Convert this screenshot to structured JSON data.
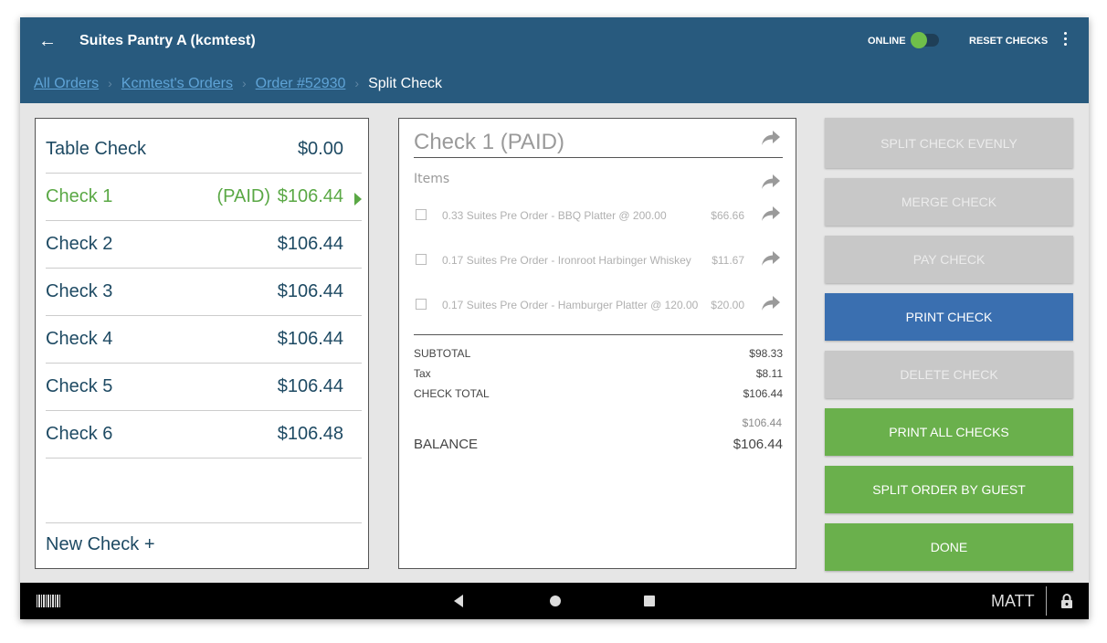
{
  "header": {
    "title": "Suites Pantry A (kcmtest)",
    "online_label": "ONLINE",
    "reset_label": "RESET CHECKS"
  },
  "breadcrumb": {
    "items": [
      "All Orders",
      "Kcmtest's Orders",
      "Order #52930"
    ],
    "current": "Split Check"
  },
  "checks": {
    "rows": [
      {
        "name": "Table Check",
        "amount": "$0.00",
        "status": ""
      },
      {
        "name": "Check 1",
        "amount": "$106.44",
        "status": "(PAID)"
      },
      {
        "name": "Check 2",
        "amount": "$106.44",
        "status": ""
      },
      {
        "name": "Check 3",
        "amount": "$106.44",
        "status": ""
      },
      {
        "name": "Check 4",
        "amount": "$106.44",
        "status": ""
      },
      {
        "name": "Check 5",
        "amount": "$106.44",
        "status": ""
      },
      {
        "name": "Check 6",
        "amount": "$106.48",
        "status": ""
      }
    ],
    "new_check": "New Check +"
  },
  "detail": {
    "title": "Check 1 (PAID)",
    "items_label": "Items",
    "items": [
      {
        "desc": "0.33 Suites Pre Order - BBQ Platter @  200.00",
        "price": "$66.66"
      },
      {
        "desc": "0.17 Suites Pre Order - Ironroot Harbinger Whiskey",
        "price": "$11.67"
      },
      {
        "desc": "0.17 Suites Pre Order - Hamburger Platter @  120.00",
        "price": "$20.00"
      }
    ],
    "subtotal_label": "SUBTOTAL",
    "subtotal": "$98.33",
    "tax_label": "Tax",
    "tax": "$8.11",
    "total_label": "CHECK TOTAL",
    "total": "$106.44",
    "paid_amount": "$106.44",
    "balance_label": "BALANCE",
    "balance": "$106.44"
  },
  "actions": {
    "split_evenly": "SPLIT CHECK EVENLY",
    "merge": "MERGE CHECK",
    "pay": "PAY CHECK",
    "print": "PRINT CHECK",
    "delete": "DELETE CHECK",
    "print_all": "PRINT ALL CHECKS",
    "split_by_guest": "SPLIT ORDER BY GUEST",
    "done": "DONE"
  },
  "navbar": {
    "user": "MATT"
  },
  "colors": {
    "header": "#285a7e",
    "paid_green": "#5aa845",
    "primary_blue": "#3a6fb0",
    "action_green": "#6ab04c"
  }
}
